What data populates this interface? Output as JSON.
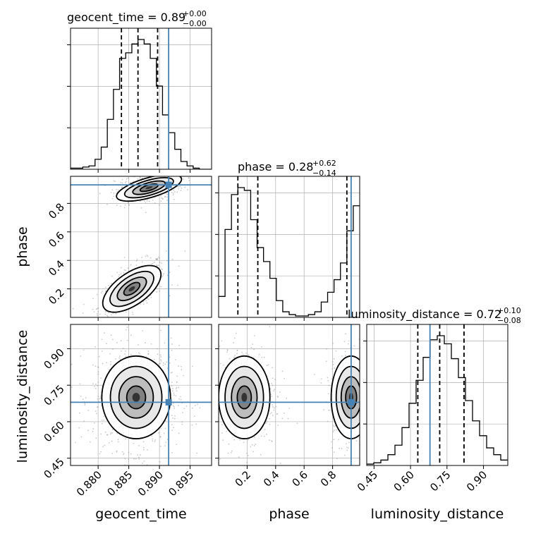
{
  "chart_data": {
    "type": "corner",
    "parameters": [
      "geocent_time",
      "phase",
      "luminosity_distance"
    ],
    "titles": [
      {
        "param": "geocent_time",
        "text": "geocent_time = 0.89",
        "sup": "+0.00",
        "sub": "−0.00"
      },
      {
        "param": "phase",
        "text": "phase = 0.28",
        "sup": "+0.62",
        "sub": "−0.14"
      },
      {
        "param": "luminosity_distance",
        "text": "luminosity_distance = 0.72",
        "sup": "+0.10",
        "sub": "−0.08"
      }
    ],
    "axes": {
      "geocent_time": {
        "range": [
          0.8755,
          0.8985
        ],
        "ticks": [
          0.88,
          0.885,
          0.89,
          0.895
        ],
        "tick_labels": [
          "0.880",
          "0.885",
          "0.890",
          "0.895"
        ]
      },
      "phase": {
        "range": [
          0.0,
          0.99
        ],
        "ticks": [
          0.2,
          0.4,
          0.6,
          0.8
        ],
        "tick_labels": [
          "0.2",
          "0.4",
          "0.6",
          "0.8"
        ]
      },
      "luminosity_distance": {
        "range": [
          0.42,
          1.0
        ],
        "ticks": [
          0.45,
          0.6,
          0.75,
          0.9
        ],
        "tick_labels": [
          "0.45",
          "0.60",
          "0.75",
          "0.90"
        ]
      }
    },
    "truths": {
      "geocent_time": 0.8915,
      "phase": 0.93,
      "luminosity_distance": 0.68
    },
    "quantiles": {
      "geocent_time": [
        0.8838,
        0.8865,
        0.8897
      ],
      "phase": [
        0.135,
        0.275,
        0.9
      ],
      "luminosity_distance": [
        0.63,
        0.72,
        0.82
      ]
    },
    "hist_geocent_time": {
      "edges_start": 0.8755,
      "bin_width": 0.001,
      "counts": [
        1,
        1,
        2,
        3,
        9,
        20,
        45,
        72,
        100,
        105,
        113,
        117,
        113,
        100,
        75,
        49,
        33,
        18,
        7,
        3,
        1,
        0,
        0
      ]
    },
    "hist_phase": {
      "edges_start": 0.0,
      "bin_width": 0.045,
      "counts": [
        15,
        63,
        88,
        93,
        91,
        70,
        50,
        40,
        28,
        12,
        4,
        2,
        1,
        1,
        2,
        4,
        11,
        18,
        27,
        39,
        62,
        80
      ]
    },
    "hist_luminosity_distance": {
      "edges_start": 0.42,
      "bin_width": 0.029,
      "counts": [
        1,
        2,
        4,
        8,
        15,
        28,
        46,
        63,
        80,
        93,
        96,
        90,
        79,
        65,
        48,
        33,
        22,
        13,
        8,
        4
      ]
    },
    "pair_phase_geocent_time": {
      "clusters": [
        {
          "center": [
            0.8855,
            0.2
          ],
          "sx": 0.0022,
          "sy": 0.08,
          "rho": 0.65,
          "weight": 0.6
        },
        {
          "center": [
            0.8883,
            0.91
          ],
          "sx": 0.0022,
          "sy": 0.05,
          "rho": 0.3,
          "weight": 0.4
        }
      ]
    },
    "pair_luminosity_distance_geocent_time": {
      "clusters": [
        {
          "center": [
            0.8862,
            0.7
          ],
          "sx": 0.0028,
          "sy": 0.085,
          "rho": 0.0,
          "weight": 1.0
        }
      ]
    },
    "pair_luminosity_distance_phase": {
      "clusters": [
        {
          "center": [
            0.18,
            0.7
          ],
          "sx": 0.09,
          "sy": 0.085,
          "rho": 0.0,
          "weight": 0.6
        },
        {
          "center": [
            0.93,
            0.7
          ],
          "sx": 0.07,
          "sy": 0.085,
          "rho": 0.0,
          "weight": 0.4
        }
      ]
    }
  }
}
